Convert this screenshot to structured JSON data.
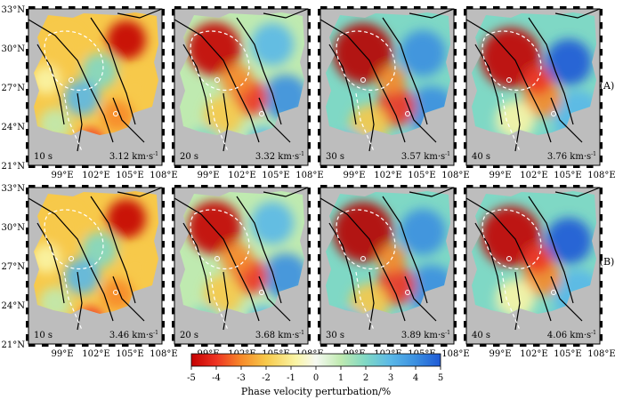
{
  "rows": [
    {
      "label": "(A)",
      "panels": [
        {
          "period": "10 s",
          "velocity": "3.12 km·s",
          "exp": "-1"
        },
        {
          "period": "20 s",
          "velocity": "3.32 km·s",
          "exp": "-1"
        },
        {
          "period": "30 s",
          "velocity": "3.57 km·s",
          "exp": "-1"
        },
        {
          "period": "40 s",
          "velocity": "3.76 km·s",
          "exp": "-1"
        }
      ]
    },
    {
      "label": "(B)",
      "panels": [
        {
          "period": "10 s",
          "velocity": "3.46 km·s",
          "exp": "-1"
        },
        {
          "period": "20 s",
          "velocity": "3.68 km·s",
          "exp": "-1"
        },
        {
          "period": "30 s",
          "velocity": "3.89 km·s",
          "exp": "-1"
        },
        {
          "period": "40 s",
          "velocity": "4.06 km·s",
          "exp": "-1"
        }
      ]
    }
  ],
  "lat_ticks": [
    "33°N",
    "30°N",
    "27°N",
    "24°N",
    "21°N"
  ],
  "lon_ticks_panel1": [
    "99°E",
    "102°E",
    "105°E",
    "108°E"
  ],
  "lon_ticks_other": [
    "99°E",
    "102°E",
    "105°E",
    "108°E"
  ],
  "colorbar": {
    "ticks": [
      "-5",
      "-4",
      "-3",
      "-2",
      "-1",
      "0",
      "1",
      "2",
      "3",
      "4",
      "5"
    ],
    "label": "Phase velocity perturbation/%",
    "colors": [
      "#c40000",
      "#ee3322",
      "#f78a2a",
      "#f7c94a",
      "#faf5a6",
      "#f6f9f2",
      "#bfeab0",
      "#7fd8c5",
      "#5ab8e8",
      "#3b8fe0",
      "#1f5ad6"
    ]
  },
  "colors": {
    "background_gray": "#bdbdbd",
    "frame": "#000000"
  }
}
